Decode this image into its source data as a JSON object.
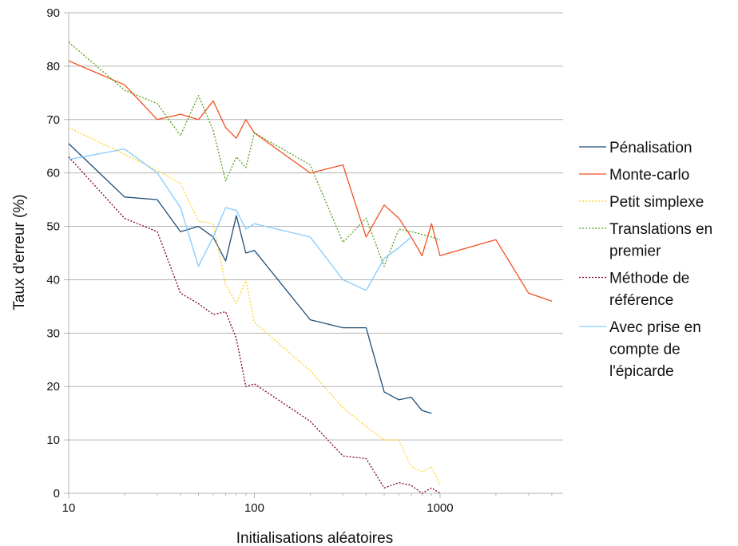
{
  "chart_data": {
    "type": "line",
    "title": "",
    "xlabel": "Initialisations aléatoires",
    "ylabel": "Taux d'erreur (%)",
    "x_scale": "log",
    "xlim": [
      10,
      4600
    ],
    "ylim": [
      0,
      90
    ],
    "x_ticks": [
      10,
      100,
      1000
    ],
    "x_tick_labels": [
      "10",
      "100",
      "1000"
    ],
    "y_ticks": [
      0,
      10,
      20,
      30,
      40,
      50,
      60,
      70,
      80,
      90
    ],
    "y_tick_labels": [
      "0",
      "10",
      "20",
      "30",
      "40",
      "50",
      "60",
      "70",
      "80",
      "90"
    ],
    "grid": "horizontal",
    "legend_position": "right",
    "series": [
      {
        "name": "Pénalisation",
        "legend_lines": [
          "Pénalisation"
        ],
        "color": "#1f4e79",
        "dash": "solid",
        "points": [
          [
            10,
            65.5
          ],
          [
            20,
            55.5
          ],
          [
            30,
            55
          ],
          [
            40,
            49
          ],
          [
            50,
            50
          ],
          [
            60,
            48
          ],
          [
            70,
            43.5
          ],
          [
            80,
            52
          ],
          [
            90,
            45
          ],
          [
            100,
            45.5
          ],
          [
            200,
            32.5
          ],
          [
            300,
            31
          ],
          [
            400,
            31
          ],
          [
            500,
            19
          ],
          [
            600,
            17.5
          ],
          [
            700,
            18
          ],
          [
            800,
            15.5
          ],
          [
            900,
            15
          ]
        ]
      },
      {
        "name": "Monte-carlo",
        "legend_lines": [
          "Monte-carlo"
        ],
        "color": "#f25022",
        "dash": "solid",
        "points": [
          [
            10,
            81
          ],
          [
            20,
            76.5
          ],
          [
            30,
            70
          ],
          [
            40,
            71
          ],
          [
            50,
            70
          ],
          [
            60,
            73.5
          ],
          [
            70,
            68.5
          ],
          [
            80,
            66.5
          ],
          [
            90,
            70
          ],
          [
            100,
            67.5
          ],
          [
            200,
            60
          ],
          [
            300,
            61.5
          ],
          [
            400,
            48
          ],
          [
            500,
            54
          ],
          [
            600,
            51.5
          ],
          [
            700,
            48
          ],
          [
            800,
            44.5
          ],
          [
            900,
            50.5
          ],
          [
            1000,
            44.5
          ],
          [
            2000,
            47.5
          ],
          [
            3000,
            37.5
          ],
          [
            4000,
            36
          ]
        ]
      },
      {
        "name": "Petit simplexe",
        "legend_lines": [
          "Petit simplexe"
        ],
        "color": "#ffd320",
        "dash": "dotted",
        "points": [
          [
            10,
            68.5
          ],
          [
            20,
            63.5
          ],
          [
            30,
            60.5
          ],
          [
            40,
            58
          ],
          [
            50,
            51
          ],
          [
            60,
            50.5
          ],
          [
            70,
            39
          ],
          [
            80,
            35.5
          ],
          [
            90,
            40
          ],
          [
            100,
            32
          ],
          [
            200,
            23
          ],
          [
            300,
            16
          ],
          [
            400,
            12.5
          ],
          [
            500,
            10
          ],
          [
            600,
            10
          ],
          [
            700,
            5
          ],
          [
            800,
            4
          ],
          [
            900,
            5
          ],
          [
            1000,
            1.5
          ]
        ]
      },
      {
        "name": "Translations en premier",
        "legend_lines": [
          "Translations en",
          "premier"
        ],
        "color": "#579d1c",
        "dash": "dotted",
        "points": [
          [
            10,
            84.5
          ],
          [
            20,
            75.5
          ],
          [
            30,
            73
          ],
          [
            40,
            67
          ],
          [
            50,
            74.5
          ],
          [
            60,
            68
          ],
          [
            70,
            58.5
          ],
          [
            80,
            63
          ],
          [
            90,
            61
          ],
          [
            100,
            67.5
          ],
          [
            200,
            61.5
          ],
          [
            300,
            47
          ],
          [
            400,
            51.5
          ],
          [
            500,
            42.5
          ],
          [
            600,
            49.5
          ],
          [
            700,
            49
          ],
          [
            800,
            48.5
          ],
          [
            900,
            48
          ],
          [
            1000,
            47.5
          ]
        ]
      },
      {
        "name": "Méthode de référence",
        "legend_lines": [
          "Méthode de",
          "référence"
        ],
        "color": "#7e0021",
        "dash": "dotted",
        "points": [
          [
            10,
            63
          ],
          [
            20,
            51.5
          ],
          [
            30,
            49
          ],
          [
            40,
            37.5
          ],
          [
            50,
            35.5
          ],
          [
            60,
            33.5
          ],
          [
            70,
            34
          ],
          [
            80,
            29
          ],
          [
            90,
            20
          ],
          [
            100,
            20.5
          ],
          [
            200,
            13.5
          ],
          [
            300,
            7
          ],
          [
            400,
            6.5
          ],
          [
            500,
            1
          ],
          [
            600,
            2
          ],
          [
            700,
            1.5
          ],
          [
            800,
            0
          ],
          [
            900,
            1
          ],
          [
            1000,
            0
          ]
        ]
      },
      {
        "name": "Avec prise en compte de l'épicarde",
        "legend_lines": [
          "Avec prise en",
          "compte de",
          "l'épicarde"
        ],
        "color": "#83caff",
        "dash": "solid",
        "points": [
          [
            10,
            62.5
          ],
          [
            20,
            64.5
          ],
          [
            30,
            60
          ],
          [
            40,
            53.5
          ],
          [
            50,
            42.5
          ],
          [
            60,
            48
          ],
          [
            70,
            53.5
          ],
          [
            80,
            53
          ],
          [
            90,
            49.5
          ],
          [
            100,
            50.5
          ],
          [
            200,
            48
          ],
          [
            300,
            40
          ],
          [
            400,
            38
          ],
          [
            500,
            44
          ],
          [
            600,
            46
          ],
          [
            700,
            48
          ]
        ]
      }
    ]
  }
}
